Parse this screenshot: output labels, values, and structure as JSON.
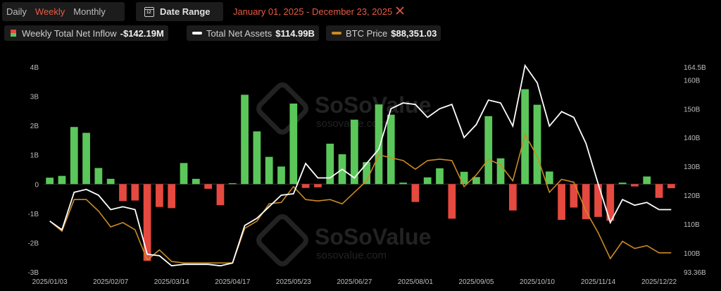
{
  "toolbar": {
    "tabs": [
      "Daily",
      "Weekly",
      "Monthly"
    ],
    "active_tab": "Weekly",
    "date_range_label": "Date Range",
    "date_range_value": "January 01, 2025 - December 23, 2025"
  },
  "legend": {
    "inflow": {
      "name": "Weekly Total Net Inflow",
      "value": "-$142.19M"
    },
    "assets": {
      "name": "Total Net Assets",
      "value": "$114.99B"
    },
    "btc": {
      "name": "BTC Price",
      "value": "$88,351.03"
    }
  },
  "watermark": {
    "brand": "SoSoValue",
    "domain": "sosovalue.com"
  },
  "colors": {
    "positive": "#5bc75a",
    "negative": "#e5493f",
    "assets_line": "#ffffff",
    "btc_line": "#c98a24",
    "accent": "#e85a43"
  },
  "chart_data": {
    "type": "bar",
    "x_ticks": [
      "2025/01/03",
      "2025/02/07",
      "2025/03/14",
      "2025/04/17",
      "2025/05/23",
      "2025/06/27",
      "2025/08/01",
      "2025/09/05",
      "2025/10/10",
      "2025/11/14",
      "2025/12/22"
    ],
    "y_left_ticks": [
      "4B",
      "3B",
      "2B",
      "1B",
      "0",
      "-1B",
      "-2B",
      "-3B"
    ],
    "y_left_range": [
      -3,
      4
    ],
    "y_right_ticks": [
      "164.5B",
      "160B",
      "150B",
      "140B",
      "130B",
      "120B",
      "110B",
      "100B",
      "93.36B"
    ],
    "y_right_range": [
      93.36,
      164.5
    ],
    "series": [
      {
        "name": "Weekly Total Net Inflow",
        "values": [
          0.22,
          0.28,
          1.95,
          1.75,
          0.55,
          0.18,
          -0.58,
          -0.56,
          -2.62,
          -0.78,
          -0.82,
          0.72,
          0.18,
          -0.16,
          -0.72,
          0.03,
          3.05,
          1.8,
          0.93,
          0.6,
          2.75,
          -0.13,
          -0.11,
          1.38,
          1.02,
          2.2,
          0.75,
          2.72,
          2.37,
          0.05,
          -0.61,
          0.23,
          0.54,
          -1.18,
          0.42,
          0.24,
          2.32,
          0.88,
          -0.9,
          3.24,
          2.71,
          0.43,
          -1.22,
          -0.8,
          -1.2,
          -1.12,
          -1.25,
          0.05,
          -0.08,
          0.26,
          -0.47,
          -0.14
        ]
      },
      {
        "name": "Total Net Assets",
        "values": [
          111,
          108,
          121,
          122,
          120,
          115,
          116,
          115,
          99.5,
          99,
          95.5,
          96,
          96,
          96,
          95.5,
          96.5,
          109.5,
          112,
          116,
          120,
          120.5,
          131,
          126,
          126,
          129,
          126,
          131,
          136,
          150,
          152,
          151.5,
          147,
          150,
          151.5,
          140,
          144.5,
          153,
          152,
          144,
          165,
          159,
          144,
          149,
          147,
          138,
          124,
          110.5,
          118.5,
          116.5,
          117.5,
          115,
          115
        ]
      },
      {
        "name": "BTC Price",
        "values": [
          111,
          107.5,
          118.5,
          118.5,
          114.5,
          109,
          110.5,
          108,
          97.5,
          101,
          97,
          96.5,
          96.5,
          96.5,
          96.5,
          96.5,
          108.5,
          111,
          117,
          117.5,
          123,
          118.5,
          118,
          118.5,
          117,
          121,
          125,
          134,
          133,
          132,
          129,
          132,
          132.5,
          132,
          123,
          127,
          132.5,
          130.5,
          125,
          141,
          133.5,
          121,
          125.5,
          124.5,
          114.5,
          107,
          98,
          104,
          101.5,
          102.5,
          100,
          100
        ]
      }
    ]
  }
}
